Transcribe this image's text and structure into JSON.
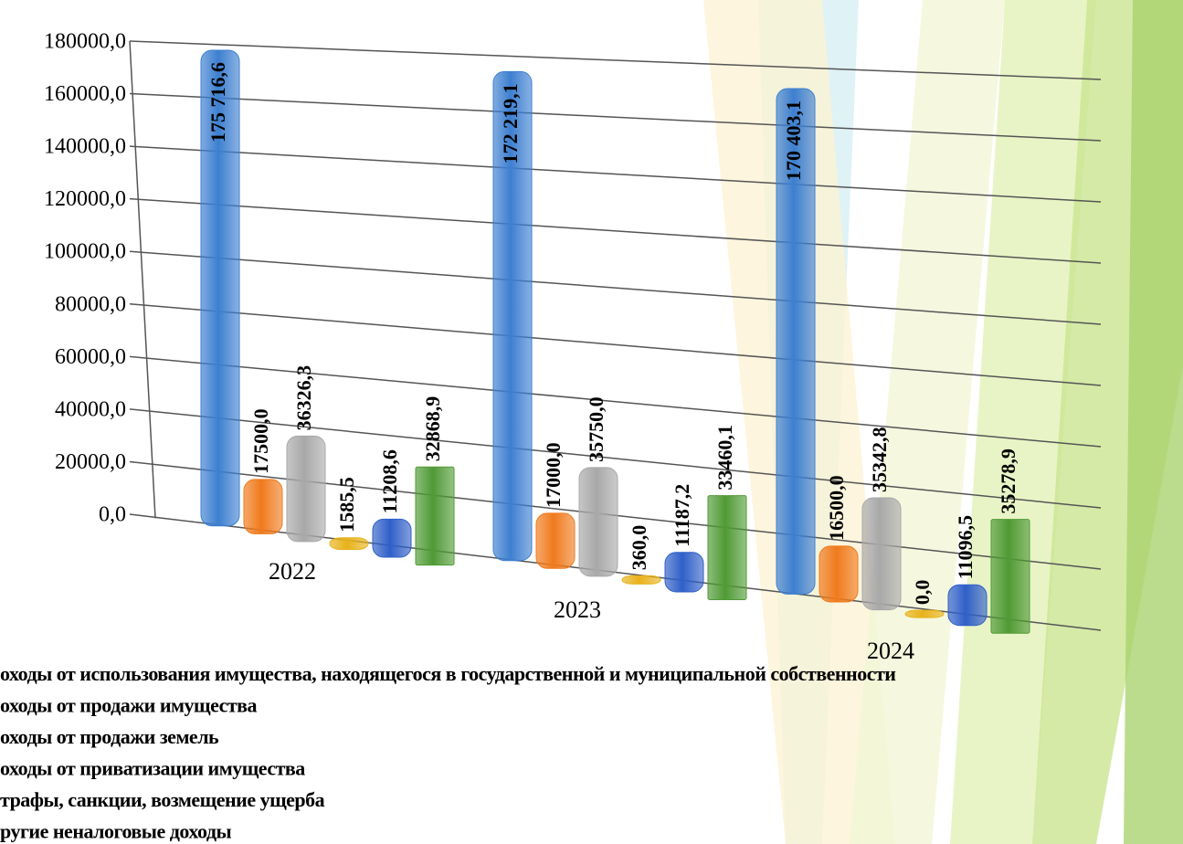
{
  "chart_data": {
    "type": "bar3d",
    "categories": [
      "2022",
      "2023",
      "2024"
    ],
    "series": [
      {
        "name": "оходы от использования  имущества, находящегося в государственной и муниципальной  собственности",
        "color": "#3d7fd0",
        "values": [
          175716.6,
          172219.1,
          170403.1
        ],
        "value_labels": [
          "175 716,6",
          "172 219,1",
          "170 403,1"
        ]
      },
      {
        "name": "оходы от продажи имущества",
        "color": "#f07a1c",
        "values": [
          17500.0,
          17000.0,
          16500.0
        ],
        "value_labels": [
          "17500,0",
          "17000,0",
          "16500,0"
        ]
      },
      {
        "name": "оходы от продажи земель",
        "color": "#a8a8a8",
        "values": [
          36326.3,
          35750.0,
          35342.8
        ],
        "value_labels": [
          "36326,3",
          "35750,0",
          "35342,8"
        ]
      },
      {
        "name": "оходы от приватизации  имущества",
        "color": "#e8b21a",
        "values": [
          1585.5,
          360.0,
          0.0
        ],
        "value_labels": [
          "1585,5",
          "360,0",
          "0,0"
        ]
      },
      {
        "name": "трафы, санкции,  возмещение ущерба",
        "color": "#2f5fc8",
        "values": [
          11208.6,
          11187.2,
          11096.5
        ],
        "value_labels": [
          "11208,6",
          "11187,2",
          "11096,5"
        ]
      },
      {
        "name": "ругие  неналоговые доходы",
        "color": "#4f9a35",
        "values": [
          32868.9,
          33460.1,
          35278.9
        ],
        "value_labels": [
          "32868,9",
          "33460,1",
          "35278,9"
        ]
      }
    ],
    "ylim": [
      0,
      180000
    ],
    "yticks": [
      {
        "value": 0,
        "label": "0,0"
      },
      {
        "value": 20000,
        "label": "20000,0"
      },
      {
        "value": 40000,
        "label": "40000,0"
      },
      {
        "value": 60000,
        "label": "60000,0"
      },
      {
        "value": 80000,
        "label": "80000,0"
      },
      {
        "value": 100000,
        "label": "100000,0"
      },
      {
        "value": 120000,
        "label": "120000,0"
      },
      {
        "value": 140000,
        "label": "140000,0"
      },
      {
        "value": 160000,
        "label": "160000,0"
      },
      {
        "value": 180000,
        "label": "180000,0"
      }
    ],
    "grid": true
  }
}
